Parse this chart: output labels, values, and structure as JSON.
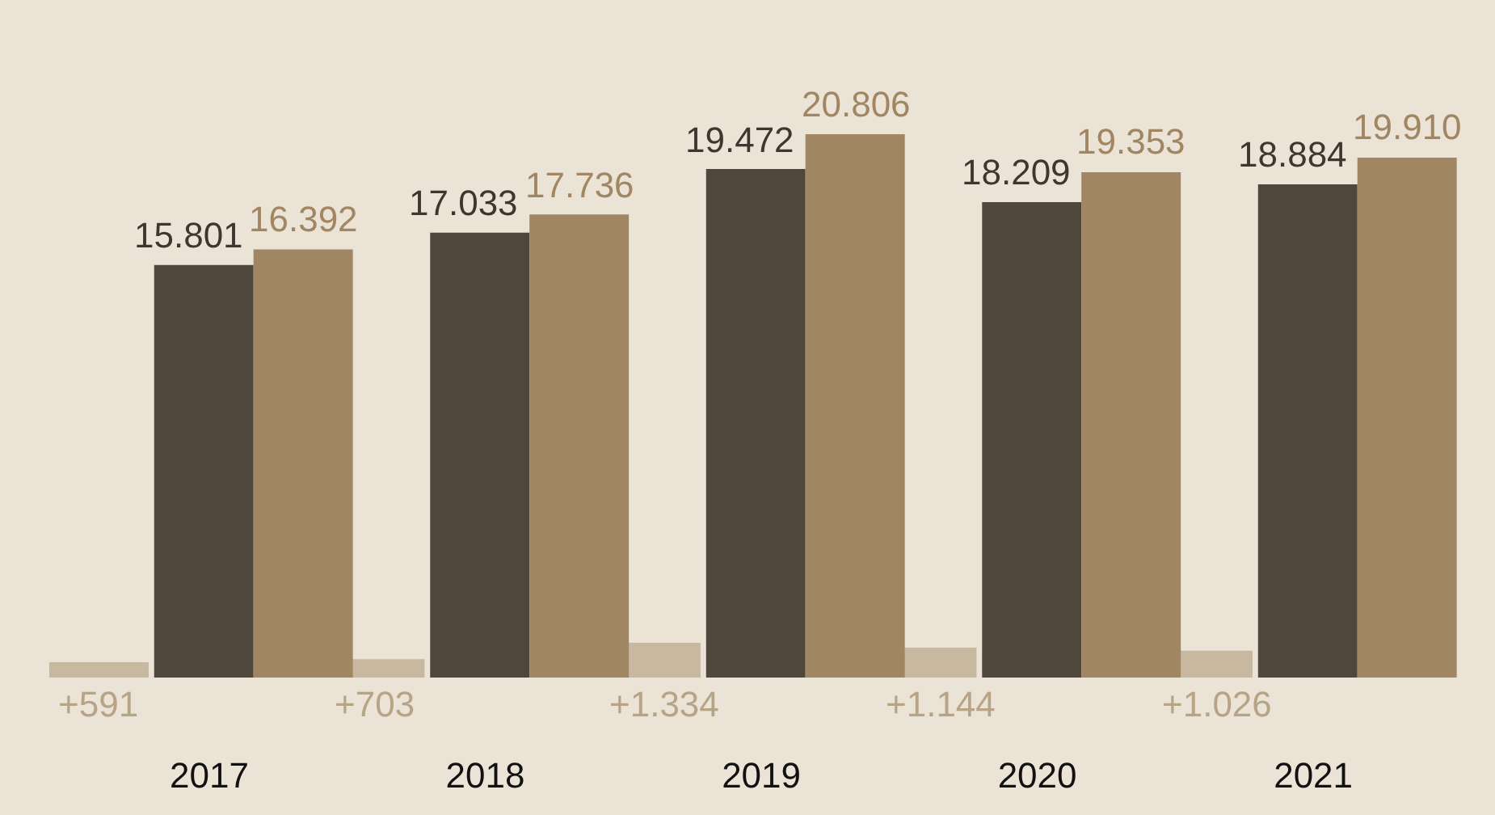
{
  "chart_data": {
    "type": "bar",
    "categories": [
      "2017",
      "2018",
      "2019",
      "2020",
      "2021"
    ],
    "series": [
      {
        "color": "#c9b8a0",
        "values": [
          591,
          703,
          1334,
          1144,
          1026
        ],
        "value_labels": [
          "+591",
          "+703",
          "+1.334",
          "+1.144",
          "+1.026"
        ]
      },
      {
        "color": "#50473c",
        "values": [
          15801,
          17033,
          19472,
          18209,
          18884
        ],
        "value_labels": [
          "15.801",
          "17.033",
          "19.472",
          "18.209",
          "18.884"
        ]
      },
      {
        "color": "#a08662",
        "values": [
          16392,
          17736,
          20806,
          19353,
          19910
        ],
        "value_labels": [
          "16.392",
          "17.736",
          "20.806",
          "19.353",
          "19.910"
        ]
      }
    ]
  }
}
